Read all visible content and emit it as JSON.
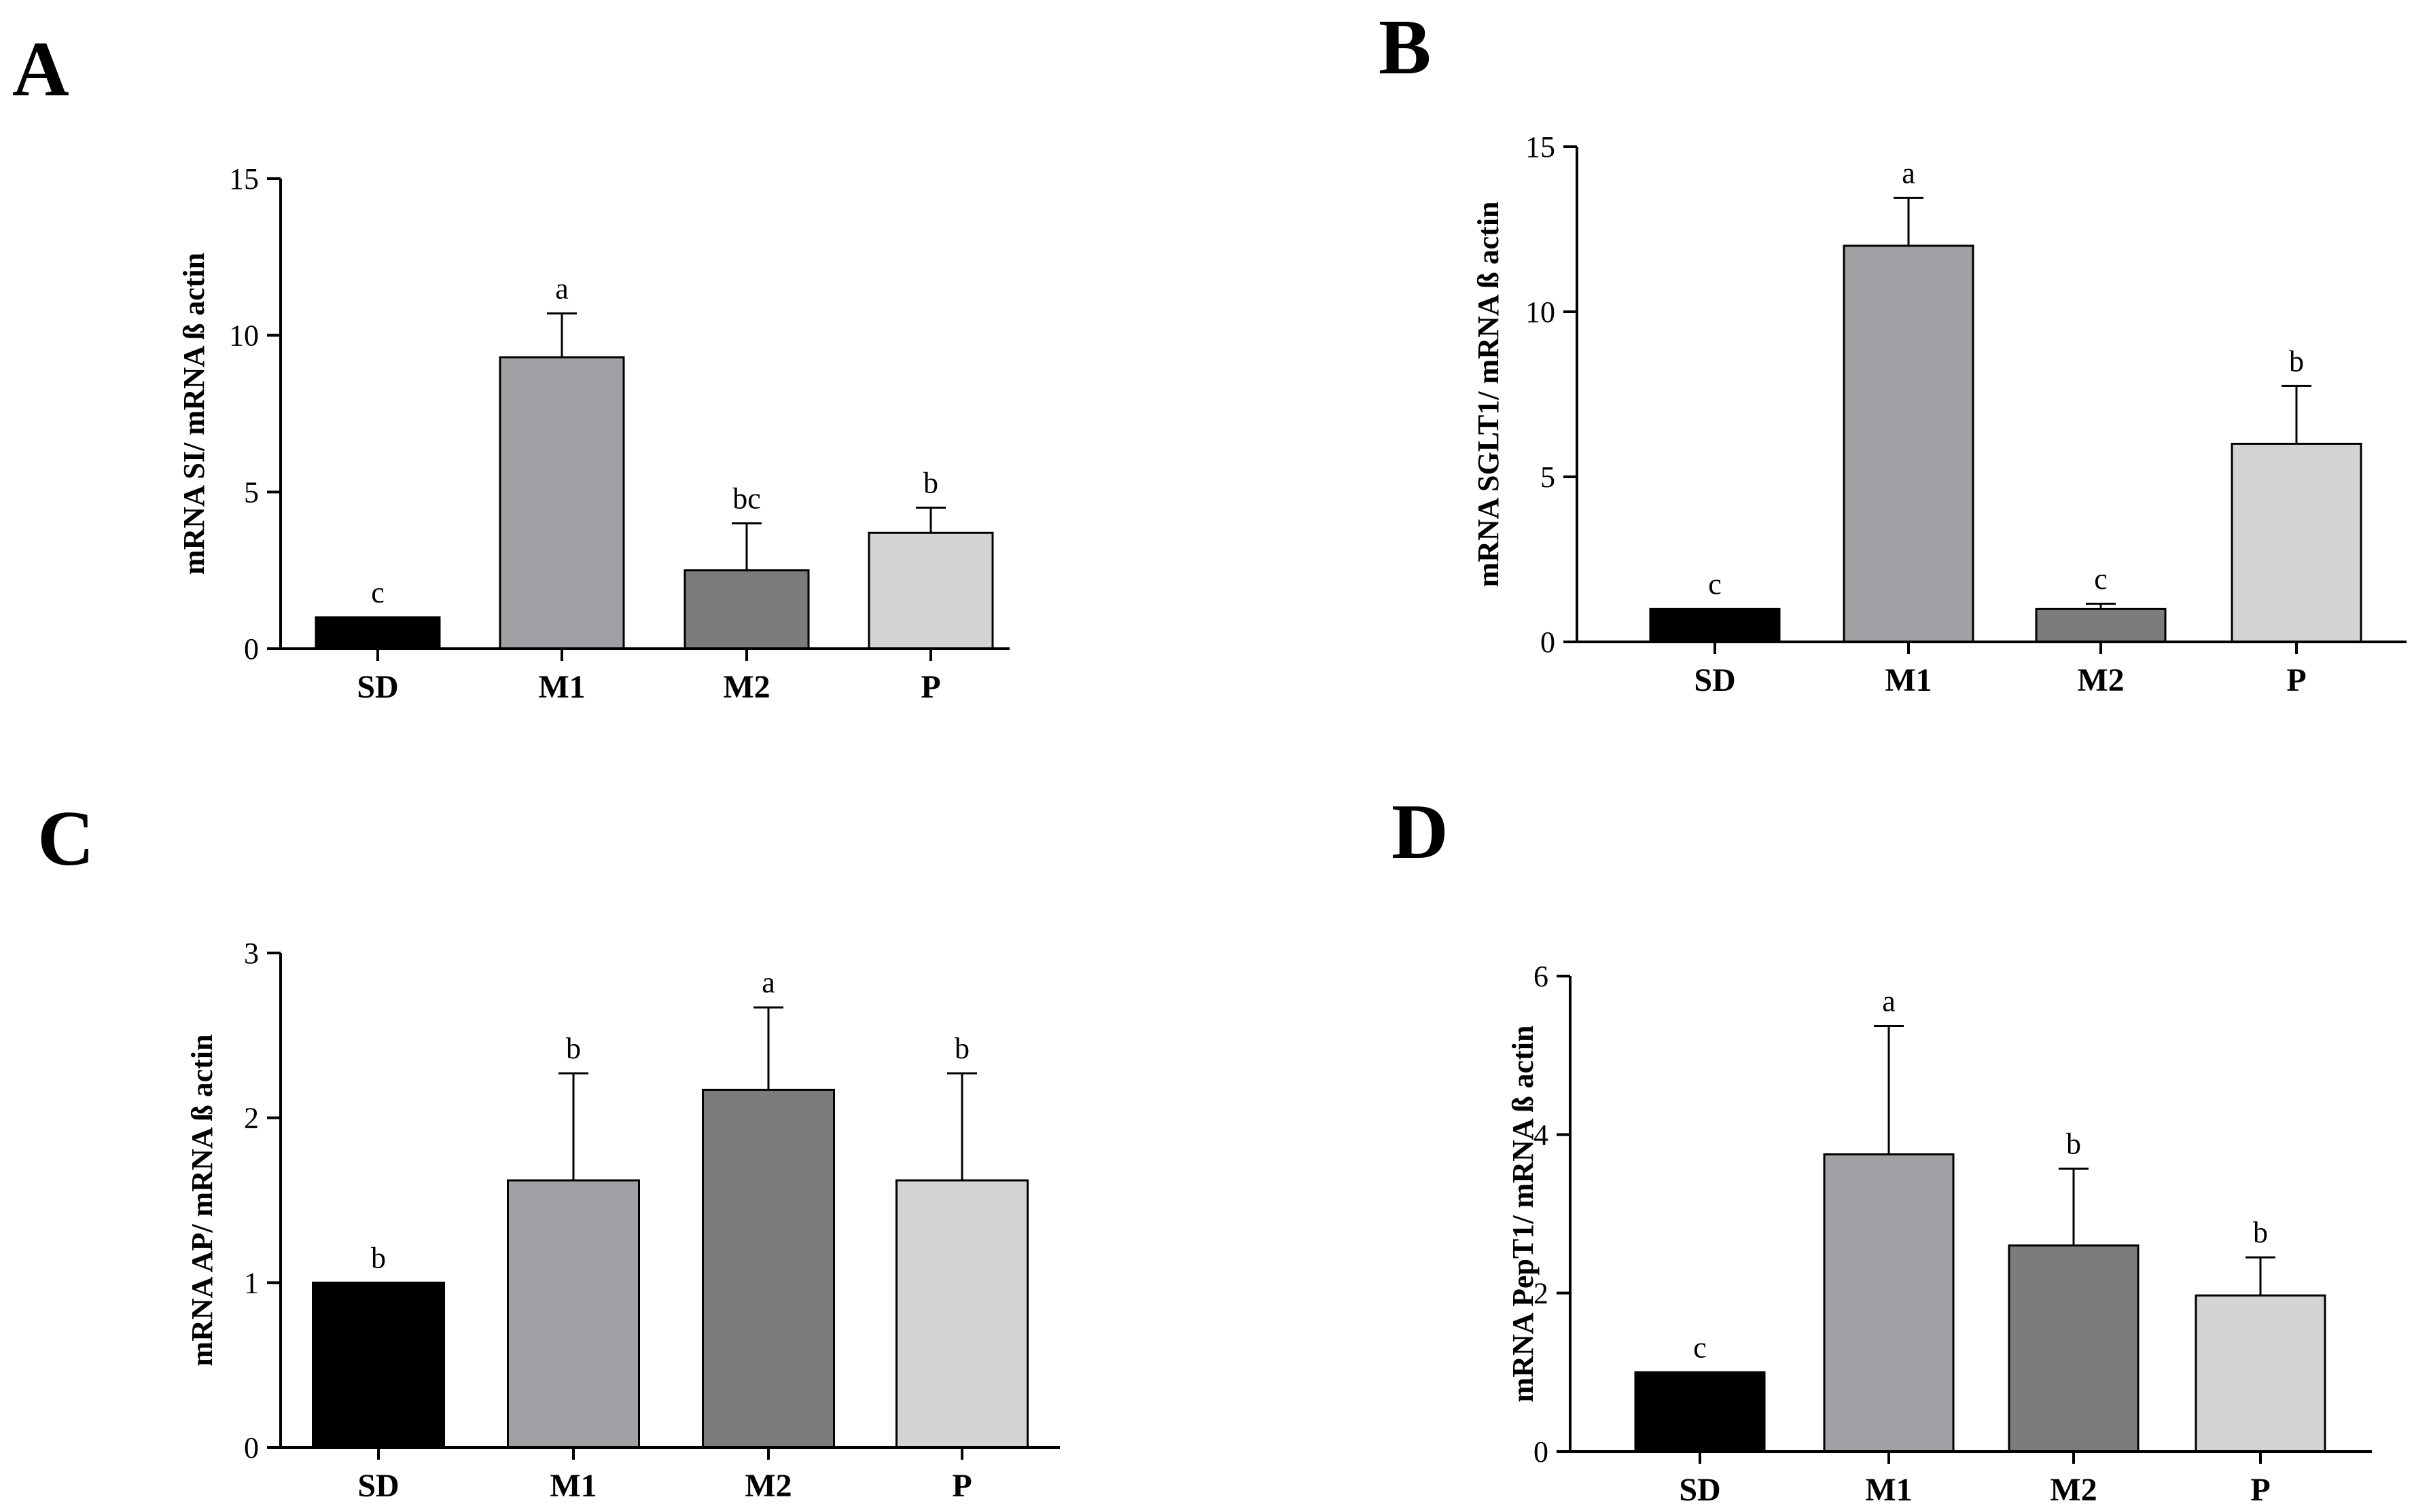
{
  "chart_data": [
    {
      "panel": "A",
      "type": "bar",
      "title": "",
      "xlabel": "",
      "ylabel": "mRNA SI/ mRNA ß actin",
      "ylim": [
        0,
        15
      ],
      "yticks": [
        0,
        5,
        10,
        15
      ],
      "categories": [
        "SD",
        "M1",
        "M2",
        "P"
      ],
      "values": [
        1.0,
        9.3,
        2.5,
        3.7
      ],
      "errors": [
        0.0,
        1.4,
        1.5,
        0.8
      ],
      "significance": [
        "c",
        "a",
        "bc",
        "b"
      ],
      "colors": [
        "#000000",
        "#a0a0a5",
        "#7c7c7c",
        "#d4d4d4"
      ]
    },
    {
      "panel": "B",
      "type": "bar",
      "title": "",
      "xlabel": "",
      "ylabel": "mRNA SGLT1/ mRNA ß actin",
      "ylim": [
        0,
        15
      ],
      "yticks": [
        0,
        5,
        10,
        15
      ],
      "categories": [
        "SD",
        "M1",
        "M2",
        "P"
      ],
      "values": [
        1.0,
        12.0,
        1.0,
        6.0
      ],
      "errors": [
        0.0,
        1.45,
        0.15,
        1.75
      ],
      "significance": [
        "c",
        "a",
        "c",
        "b"
      ],
      "colors": [
        "#000000",
        "#a0a0a5",
        "#7c7c7c",
        "#d4d4d4"
      ]
    },
    {
      "panel": "C",
      "type": "bar",
      "title": "",
      "xlabel": "",
      "ylabel": "mRNA AP/ mRNA ß actin",
      "ylim": [
        0,
        3
      ],
      "yticks": [
        0,
        1,
        2,
        3
      ],
      "categories": [
        "SD",
        "M1",
        "M2",
        "P"
      ],
      "values": [
        1.0,
        1.62,
        2.17,
        1.62
      ],
      "errors": [
        0.0,
        0.65,
        0.5,
        0.65
      ],
      "significance": [
        "b",
        "b",
        "a",
        "b"
      ],
      "colors": [
        "#000000",
        "#a0a0a5",
        "#7c7c7c",
        "#d4d4d4"
      ]
    },
    {
      "panel": "D",
      "type": "bar",
      "title": "",
      "xlabel": "",
      "ylabel": "mRNA PepT1/ mRNA ß actin",
      "ylim": [
        0,
        6
      ],
      "yticks": [
        0,
        2,
        4,
        6
      ],
      "categories": [
        "SD",
        "M1",
        "M2",
        "P"
      ],
      "values": [
        1.0,
        3.75,
        2.6,
        1.97
      ],
      "errors": [
        0.0,
        1.62,
        0.97,
        0.48
      ],
      "significance": [
        "c",
        "a",
        "b",
        "b"
      ],
      "colors": [
        "#000000",
        "#a0a0a5",
        "#7c7c7c",
        "#d4d4d4"
      ]
    }
  ]
}
